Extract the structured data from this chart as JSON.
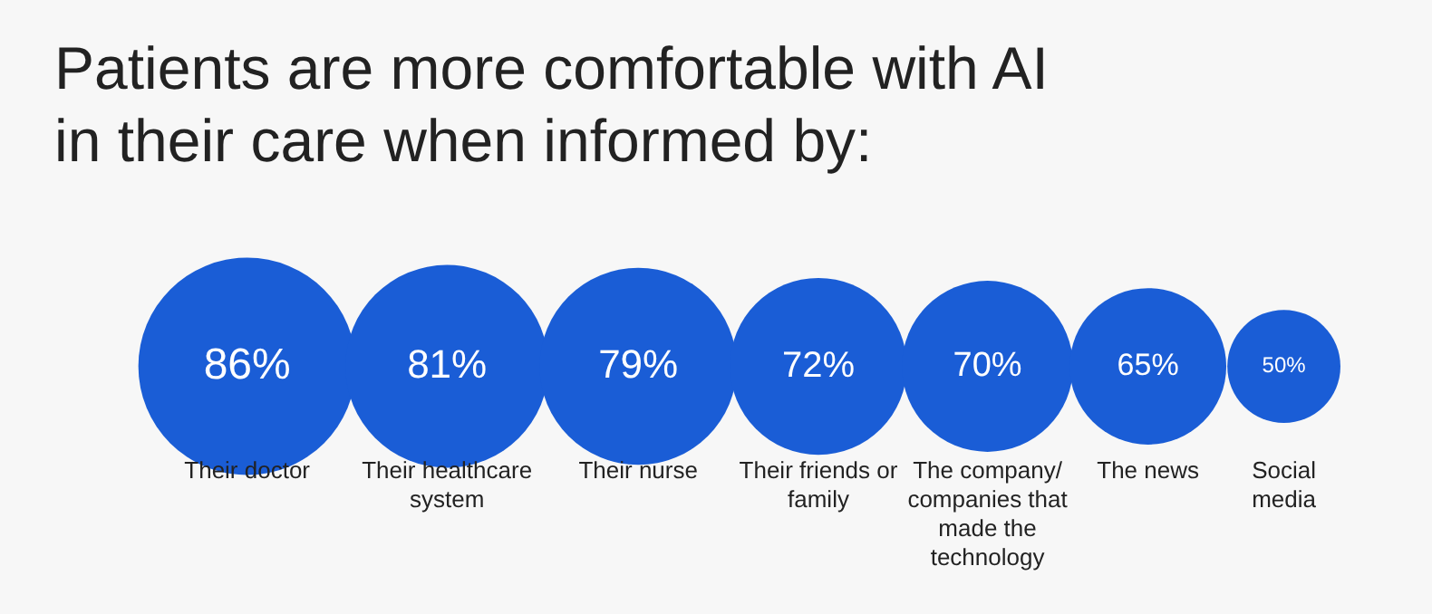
{
  "chart_data": {
    "type": "other",
    "title": "Patients are more comfortable with AI in their care when informed by:",
    "categories": [
      "Their doctor",
      "Their healthcare system",
      "Their nurse",
      "Their friends or family",
      "The company/companies that made the technology",
      "The news",
      "Social media"
    ],
    "values": [
      86,
      81,
      79,
      72,
      70,
      65,
      50
    ],
    "color": "#1a5dd6",
    "value_labels": [
      "86%",
      "81%",
      "79%",
      "72%",
      "70%",
      "65%",
      "50%"
    ]
  }
}
